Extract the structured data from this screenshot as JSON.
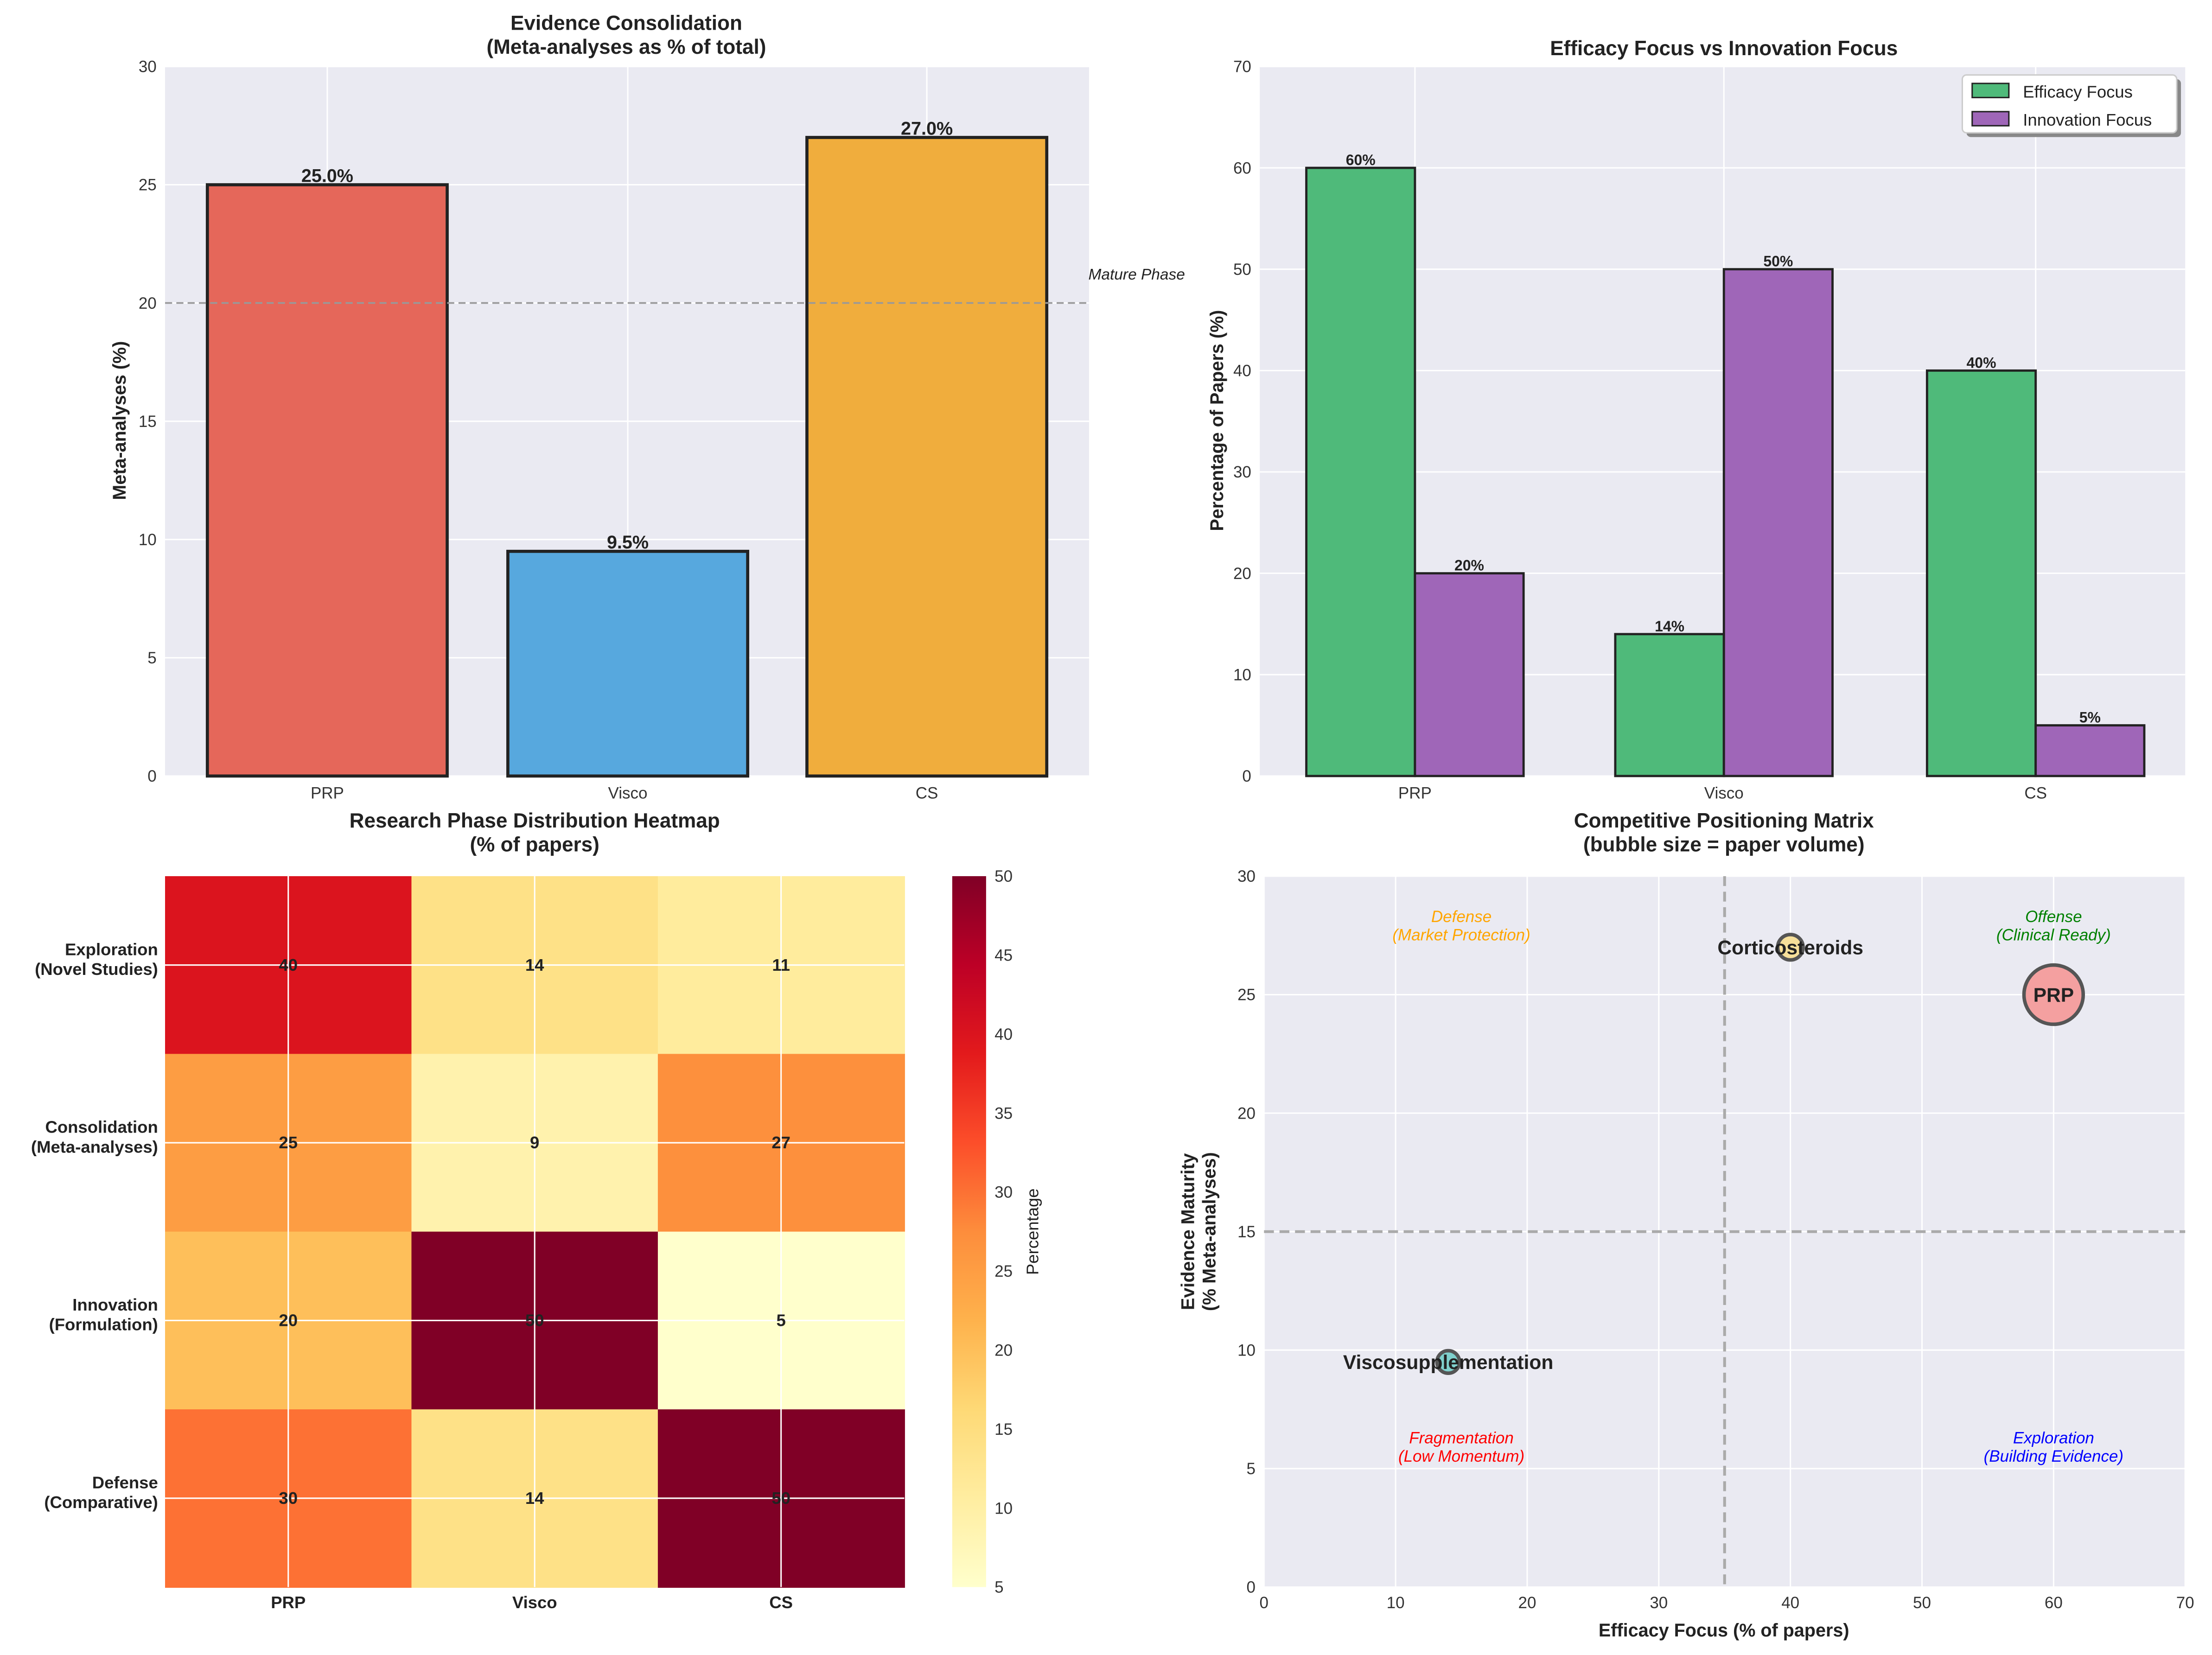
{
  "colors": {
    "panel_bg": "#eaeaf2",
    "grid": "#ffffff"
  },
  "chart_data": [
    {
      "type": "bar",
      "title": "Evidence Consolidation\n(Meta-analyses as % of total)",
      "xlabel": "",
      "ylabel": "Meta-analyses (%)",
      "categories": [
        "PRP",
        "Visco",
        "CS"
      ],
      "values": [
        25.0,
        9.5,
        27.0
      ],
      "data_labels": [
        "25.0%",
        "9.5%",
        "27.0%"
      ],
      "colors": [
        "#e5675a",
        "#57a8de",
        "#f0ad3d"
      ],
      "ylim": [
        0,
        30
      ],
      "yticks": [
        0,
        5,
        10,
        15,
        20,
        25,
        30
      ],
      "reference_line": {
        "y": 20,
        "label": "Mature Phase"
      },
      "grid": true
    },
    {
      "type": "bar",
      "title": "Efficacy Focus vs Innovation Focus",
      "ylabel": "Percentage of Papers (%)",
      "categories": [
        "PRP",
        "Visco",
        "CS"
      ],
      "series": [
        {
          "name": "Efficacy Focus",
          "values": [
            60,
            14,
            40
          ],
          "labels": [
            "60%",
            "14%",
            "40%"
          ],
          "color": "#4fba7a"
        },
        {
          "name": "Innovation Focus",
          "values": [
            20,
            50,
            5
          ],
          "labels": [
            "20%",
            "50%",
            "5%"
          ],
          "color": "#9f66b8"
        }
      ],
      "ylim": [
        0,
        70
      ],
      "yticks": [
        0,
        10,
        20,
        30,
        40,
        50,
        60,
        70
      ],
      "legend": "top-right",
      "grid": true
    },
    {
      "type": "heatmap",
      "title": "Research Phase Distribution Heatmap\n(% of papers)",
      "columns": [
        "PRP",
        "Visco",
        "CS"
      ],
      "rows": [
        "Exploration\n(Novel Studies)",
        "Consolidation\n(Meta-analyses)",
        "Innovation\n(Formulation)",
        "Defense\n(Comparative)"
      ],
      "values": [
        [
          40,
          14,
          11
        ],
        [
          25,
          9,
          27
        ],
        [
          20,
          50,
          5
        ],
        [
          30,
          14,
          50
        ]
      ],
      "colormap": "YlOrRd",
      "colorbar": {
        "label": "Percentage",
        "range": [
          5,
          50
        ],
        "ticks": [
          5,
          10,
          15,
          20,
          25,
          30,
          35,
          40,
          45,
          50
        ]
      }
    },
    {
      "type": "scatter",
      "title": "Competitive Positioning Matrix\n(bubble size = paper volume)",
      "xlabel": "Efficacy Focus (% of papers)",
      "ylabel": "Evidence Maturity\n(% Meta-analyses)",
      "xlim": [
        0,
        70
      ],
      "ylim": [
        0,
        30
      ],
      "xticks": [
        0,
        10,
        20,
        30,
        40,
        50,
        60,
        70
      ],
      "yticks": [
        0,
        5,
        10,
        15,
        20,
        25,
        30
      ],
      "points": [
        {
          "label": "PRP",
          "x": 60,
          "y": 25,
          "color": "#f4a0a0"
        },
        {
          "label": "Corticosteroids",
          "x": 40,
          "y": 27,
          "color": "#f7e09a"
        },
        {
          "label": "Viscosupplementation",
          "x": 14,
          "y": 9.5,
          "color": "#7fd0cc"
        }
      ],
      "divider_lines": {
        "x": 35,
        "y": 15
      },
      "quadrant_labels": [
        {
          "text": "Defense\n(Market Protection)",
          "x": 15,
          "y": 27.5,
          "color": "#ffa500"
        },
        {
          "text": "Offense\n(Clinical Ready)",
          "x": 60,
          "y": 27.5,
          "color": "#008000"
        },
        {
          "text": "Fragmentation\n(Low Momentum)",
          "x": 15,
          "y": 5.5,
          "color": "#ff0000"
        },
        {
          "text": "Exploration\n(Building Evidence)",
          "x": 60,
          "y": 5.5,
          "color": "#0000ff"
        }
      ],
      "grid": true
    }
  ]
}
